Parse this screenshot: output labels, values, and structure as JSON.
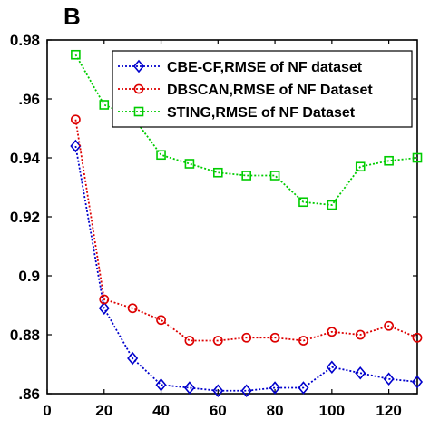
{
  "chart_data": {
    "type": "line",
    "panel_label": "B",
    "xlabel": "",
    "ylabel": "",
    "xlim": [
      0,
      130
    ],
    "ylim": [
      0.86,
      0.98
    ],
    "x_ticks": [
      0,
      20,
      40,
      60,
      80,
      100,
      120
    ],
    "x_tick_labels": [
      "0",
      "20",
      "40",
      "60",
      "80",
      "100",
      "120"
    ],
    "y_ticks": [
      0.86,
      0.88,
      0.9,
      0.92,
      0.94,
      0.96,
      0.98
    ],
    "y_tick_labels": [
      ".86",
      "0.88",
      "0.9",
      "0.92",
      "0.94",
      ".96",
      "0.98"
    ],
    "grid": false,
    "legend_position": "top-right",
    "x": [
      10,
      20,
      30,
      40,
      50,
      60,
      70,
      80,
      90,
      100,
      110,
      120,
      130
    ],
    "series": [
      {
        "name": "CBE-CF,RMSE of NF dataset",
        "color": "#0000cc",
        "marker": "diamond",
        "values": [
          0.944,
          0.889,
          0.872,
          0.863,
          0.862,
          0.861,
          0.861,
          0.862,
          0.862,
          0.869,
          0.867,
          0.865,
          0.864
        ]
      },
      {
        "name": "DBSCAN,RMSE of NF Dataset",
        "color": "#dd0000",
        "marker": "circle",
        "values": [
          0.953,
          0.892,
          0.889,
          0.885,
          0.878,
          0.878,
          0.879,
          0.879,
          0.878,
          0.881,
          0.88,
          0.883,
          0.879
        ]
      },
      {
        "name": "STING,RMSE of NF Dataset",
        "color": "#00cc00",
        "marker": "square",
        "values": [
          0.975,
          0.958,
          0.954,
          0.941,
          0.938,
          0.935,
          0.934,
          0.934,
          0.925,
          0.924,
          0.937,
          0.939,
          0.94
        ]
      }
    ]
  }
}
